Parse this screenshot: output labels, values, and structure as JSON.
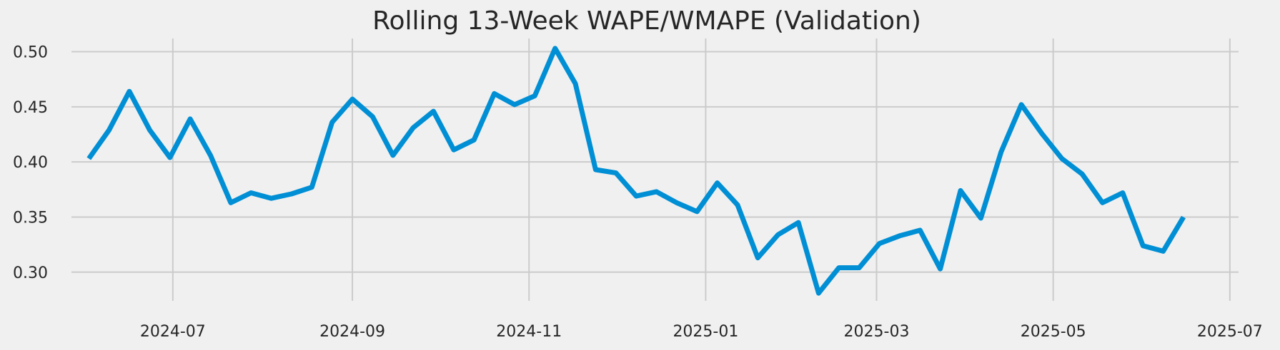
{
  "chart_data": {
    "type": "line",
    "title": "Rolling 13-Week WAPE/WMAPE (Validation)",
    "xlabel": "",
    "ylabel": "",
    "grid": true,
    "colors": {
      "background": "#f0f0f0",
      "series": "#008fd5",
      "grid": "#cbcbcb",
      "text": "#262626"
    },
    "x_ticks": [
      "2024-07",
      "2024-09",
      "2024-11",
      "2025-01",
      "2025-03",
      "2025-05",
      "2025-07"
    ],
    "y_ticks": [
      "0.30",
      "0.35",
      "0.40",
      "0.45",
      "0.50"
    ],
    "xlim": [
      "2024-05-27",
      "2025-07-04"
    ],
    "ylim": [
      0.274,
      0.512
    ],
    "series": [
      {
        "x": [
          "2024-06-02",
          "2024-06-09",
          "2024-06-16",
          "2024-06-23",
          "2024-06-30",
          "2024-07-07",
          "2024-07-14",
          "2024-07-21",
          "2024-07-28",
          "2024-08-04",
          "2024-08-11",
          "2024-08-18",
          "2024-08-25",
          "2024-09-01",
          "2024-09-08",
          "2024-09-15",
          "2024-09-22",
          "2024-09-29",
          "2024-10-06",
          "2024-10-13",
          "2024-10-20",
          "2024-10-27",
          "2024-11-03",
          "2024-11-10",
          "2024-11-17",
          "2024-11-24",
          "2024-12-01",
          "2024-12-08",
          "2024-12-15",
          "2024-12-22",
          "2024-12-29",
          "2025-01-05",
          "2025-01-12",
          "2025-01-19",
          "2025-01-26",
          "2025-02-02",
          "2025-02-09",
          "2025-02-16",
          "2025-02-23",
          "2025-03-02",
          "2025-03-09",
          "2025-03-16",
          "2025-03-23",
          "2025-03-30",
          "2025-04-06",
          "2025-04-13",
          "2025-04-20",
          "2025-04-27",
          "2025-05-04",
          "2025-05-11",
          "2025-05-18",
          "2025-05-25",
          "2025-06-01",
          "2025-06-08",
          "2025-06-15"
        ],
        "y": [
          0.403,
          0.429,
          0.464,
          0.429,
          0.404,
          0.439,
          0.406,
          0.363,
          0.372,
          0.367,
          0.371,
          0.377,
          0.436,
          0.457,
          0.441,
          0.406,
          0.431,
          0.446,
          0.411,
          0.42,
          0.462,
          0.452,
          0.46,
          0.503,
          0.471,
          0.393,
          0.39,
          0.369,
          0.373,
          0.363,
          0.355,
          0.381,
          0.361,
          0.313,
          0.334,
          0.345,
          0.281,
          0.304,
          0.304,
          0.326,
          0.333,
          0.338,
          0.303,
          0.374,
          0.349,
          0.409,
          0.452,
          0.426,
          0.403,
          0.389,
          0.363,
          0.372,
          0.324,
          0.319,
          0.35
        ]
      }
    ]
  }
}
